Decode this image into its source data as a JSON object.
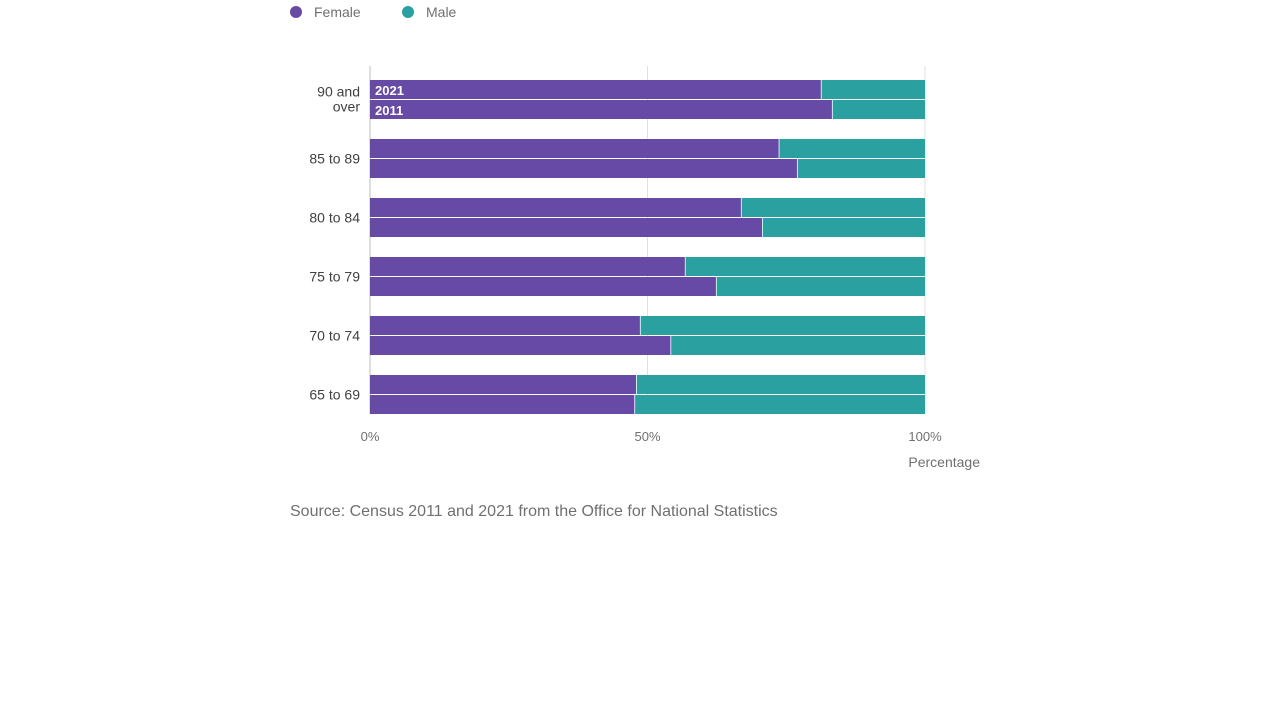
{
  "chart_data": {
    "type": "bar",
    "orientation": "horizontal",
    "stacked": true,
    "percent": true,
    "categories": [
      "90 and over",
      "85 to 89",
      "80 to 84",
      "75 to 79",
      "70 to 74",
      "65 to 69"
    ],
    "years": [
      "2021",
      "2011"
    ],
    "series": [
      {
        "name": "Female",
        "color": "#6749a6",
        "values": {
          "2021": [
            81.3,
            73.7,
            66.9,
            56.8,
            48.7,
            48.0
          ],
          "2011": [
            83.3,
            77.0,
            70.7,
            62.4,
            54.2,
            47.7
          ]
        }
      },
      {
        "name": "Male",
        "color": "#2ba0a0",
        "values": {
          "2021": [
            18.7,
            26.3,
            33.1,
            43.2,
            51.3,
            52.0
          ],
          "2011": [
            16.7,
            23.0,
            29.3,
            37.6,
            45.8,
            52.3
          ]
        }
      }
    ],
    "xlim": [
      0,
      100
    ],
    "xticks": [
      "0%",
      "50%",
      "100%"
    ],
    "xlabel": "Percentage",
    "ylabel": "",
    "title": "",
    "grid": true,
    "legend": "top-left",
    "annotations": [
      "2021",
      "2011"
    ],
    "source": "Source: Census 2011 and 2021 from the Office for National Statistics"
  }
}
